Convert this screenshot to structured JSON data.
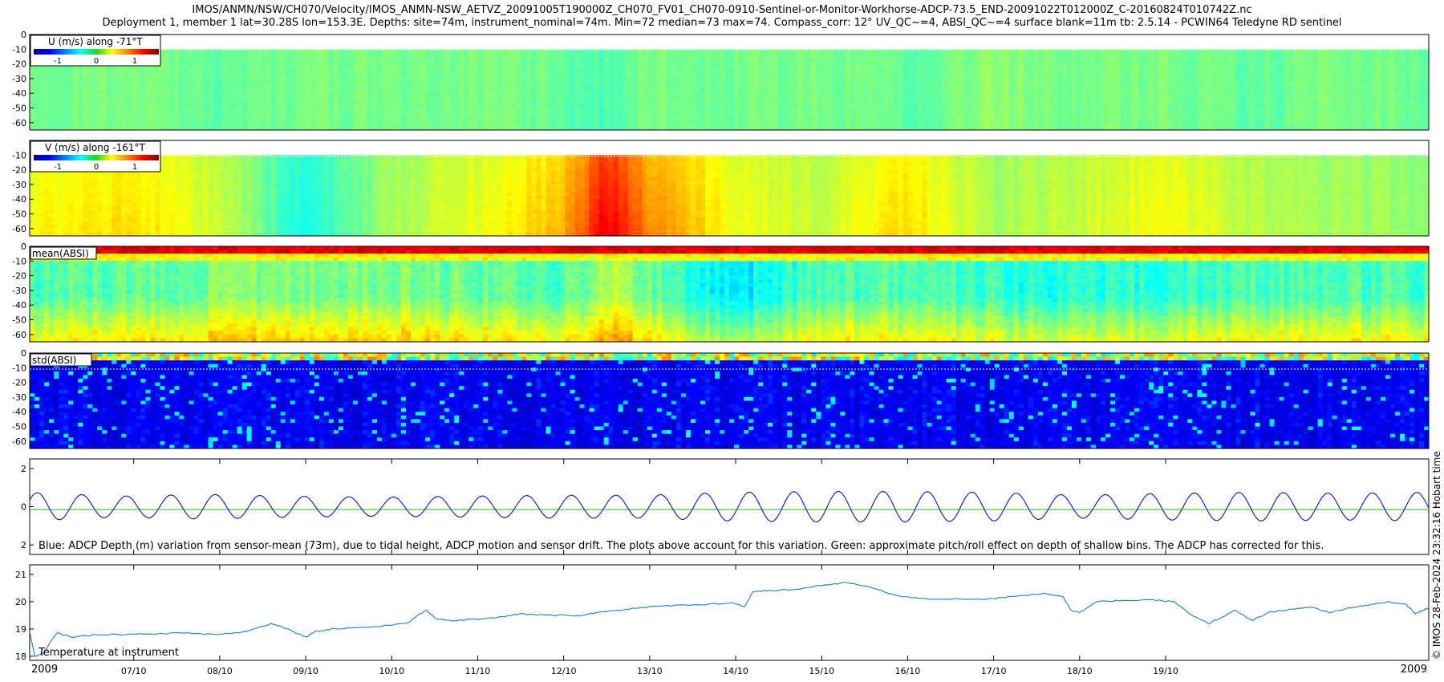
{
  "header": {
    "title_line1": "IMOS/ANMN/NSW/CH070/Velocity/IMOS_ANMN-NSW_AETVZ_20091005T190000Z_CH070_FV01_CH070-0910-Sentinel-or-Monitor-Workhorse-ADCP-73.5_END-20091022T012000Z_C-20160824T010742Z.nc",
    "title_line2": "Deployment 1, member 1 lat=30.28S lon=153.3E. Depths: site=74m, instrument_nominal=74m. Min=72 median=73 max=74. Compass_corr: 12° UV_QC~=4, ABSI_QC~=4 surface blank=11m tb: 2.5.14 - PCWIN64 Teledyne RD sentinel"
  },
  "side_label": "© IMOS 28-Feb-2024 23:32:16 Hobart time",
  "colors": {
    "tide_line": "#1f1fcf",
    "pitch_roll_line": "#22cc22",
    "temperature_line": "#2b86c8",
    "colormap": "jet"
  },
  "time_axis": {
    "ticks": [
      "2009",
      "07/10",
      "08/10",
      "09/10",
      "10/10",
      "11/10",
      "12/10",
      "13/10",
      "14/10",
      "15/10",
      "16/10",
      "17/10",
      "18/10",
      "19/10",
      "2009"
    ],
    "start_day": 5.79,
    "end_day": 22.06
  },
  "chart_data": [
    {
      "type": "heatmap",
      "panel": "U",
      "legend_title": "U (m/s) along -71°T",
      "colorbar_ticks": [
        "-1",
        "0",
        "1"
      ],
      "yticks": [
        "0",
        "-10",
        "-20",
        "-30",
        "-40",
        "-50",
        "-60"
      ],
      "ylim": [
        -65,
        0
      ],
      "surface_blank_depth": -11,
      "time_profile_days": [
        5.8,
        7,
        8,
        9,
        10,
        11,
        12,
        12.5,
        13,
        14,
        15,
        16,
        17,
        18,
        19,
        20,
        21,
        22
      ],
      "values_mps": [
        -0.05,
        0.0,
        -0.1,
        0.0,
        -0.05,
        0.0,
        -0.1,
        -0.15,
        0.0,
        -0.05,
        0.0,
        -0.1,
        0.05,
        -0.05,
        0.0,
        -0.1,
        0.0,
        -0.05
      ]
    },
    {
      "type": "heatmap",
      "panel": "V",
      "legend_title": "V (m/s) along -161°T",
      "colorbar_ticks": [
        "-1",
        "0",
        "1"
      ],
      "yticks": [
        "-10",
        "-20",
        "-30",
        "-40",
        "-50",
        "-60"
      ],
      "ylim": [
        -65,
        0
      ],
      "surface_blank_depth": -11,
      "time_profile_days": [
        5.8,
        7,
        8,
        9,
        10,
        11,
        12,
        12.5,
        13,
        14,
        15,
        16,
        17,
        18,
        19,
        20,
        21,
        22
      ],
      "values_mps": [
        0.35,
        0.45,
        0.2,
        -0.3,
        0.1,
        0.3,
        0.55,
        1.1,
        0.7,
        0.3,
        0.2,
        0.45,
        0.1,
        0.2,
        0.35,
        0.15,
        0.1,
        0.05
      ]
    },
    {
      "type": "heatmap",
      "panel": "meanABSI",
      "legend_title": "mean(ABSI)",
      "yticks": [
        "0",
        "-10",
        "-20",
        "-30",
        "-40",
        "-50",
        "-60"
      ],
      "ylim": [
        -65,
        0
      ],
      "surface_band_level": 0.9,
      "time_profile_days": [
        5.8,
        8,
        10,
        12,
        12.5,
        14,
        15,
        16,
        18,
        20,
        22
      ],
      "values_normalized": [
        0.45,
        0.5,
        0.5,
        0.45,
        0.55,
        0.35,
        0.45,
        0.45,
        0.4,
        0.45,
        0.45
      ]
    },
    {
      "type": "heatmap",
      "panel": "stdABSI",
      "legend_title": "std(ABSI)",
      "yticks": [
        "0",
        "-10",
        "-20",
        "-30",
        "-40",
        "-50",
        "-60"
      ],
      "ylim": [
        -65,
        0
      ],
      "values_normalized": [
        0.1,
        0.12,
        0.1,
        0.15,
        0.1,
        0.12,
        0.1
      ]
    },
    {
      "type": "line",
      "panel": "depth_variation",
      "yticks": [
        "2",
        "0",
        "2"
      ],
      "ylim": [
        -2.5,
        2.5
      ],
      "note": "Blue: ADCP Depth (m) variation from sensor-mean (73m), due to tidal height, ADCP motion and sensor drift. The plots above account for this variation. Green: approximate pitch/roll effect on depth of shallow bins. The ADCP has corrected for this.",
      "tide": {
        "period_days": 0.5175,
        "phase_day": 5.75,
        "amplitude_m": [
          0.75,
          0.55,
          0.65,
          0.55,
          0.5,
          0.55,
          0.6,
          0.6,
          0.75,
          0.8,
          0.8,
          0.75,
          0.6,
          0.7,
          0.75,
          0.7,
          0.75
        ]
      },
      "pitch_roll_offset_m": -0.15
    },
    {
      "type": "line",
      "panel": "temperature",
      "label": "Temperature at instrument",
      "yticks": [
        "21",
        "20",
        "19",
        "18"
      ],
      "ylim": [
        17.85,
        21.35
      ],
      "x": [
        5.79,
        5.85,
        5.95,
        6.1,
        6.3,
        6.6,
        7.0,
        7.5,
        8.0,
        8.3,
        8.6,
        8.8,
        9.0,
        9.1,
        9.3,
        9.6,
        9.9,
        10.2,
        10.4,
        10.5,
        10.7,
        10.9,
        11.2,
        11.5,
        11.8,
        12.2,
        12.5,
        12.8,
        13.2,
        13.6,
        14.0,
        14.1,
        14.2,
        14.35,
        14.7,
        15.0,
        15.3,
        15.6,
        15.9,
        16.2,
        16.6,
        17.0,
        17.2,
        17.6,
        17.8,
        17.9,
        18.0,
        18.2,
        18.5,
        18.9,
        19.1,
        19.3,
        19.5,
        19.7,
        19.8,
        20.0,
        20.2,
        20.4,
        20.7,
        20.9,
        21.2,
        21.4,
        21.6,
        21.8,
        21.9,
        22.0,
        22.06
      ],
      "y": [
        18.9,
        18.0,
        18.1,
        18.85,
        18.7,
        18.8,
        18.8,
        18.85,
        18.8,
        18.9,
        19.2,
        19.0,
        18.7,
        18.9,
        19.0,
        19.05,
        19.1,
        19.25,
        19.7,
        19.4,
        19.3,
        19.35,
        19.4,
        19.55,
        19.5,
        19.5,
        19.65,
        19.75,
        19.85,
        19.9,
        19.95,
        19.8,
        20.35,
        20.4,
        20.45,
        20.6,
        20.7,
        20.5,
        20.2,
        20.1,
        20.1,
        20.1,
        20.2,
        20.3,
        20.2,
        19.7,
        19.6,
        20.0,
        20.05,
        20.05,
        20.0,
        19.5,
        19.2,
        19.5,
        19.7,
        19.3,
        19.6,
        19.7,
        19.8,
        19.6,
        19.8,
        19.9,
        20.0,
        19.9,
        19.55,
        19.7,
        19.75
      ]
    }
  ]
}
